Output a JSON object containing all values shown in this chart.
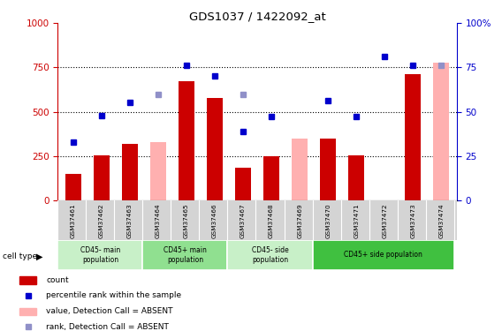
{
  "title": "GDS1037 / 1422092_at",
  "samples": [
    "GSM37461",
    "GSM37462",
    "GSM37463",
    "GSM37464",
    "GSM37465",
    "GSM37466",
    "GSM37467",
    "GSM37468",
    "GSM37469",
    "GSM37470",
    "GSM37471",
    "GSM37472",
    "GSM37473",
    "GSM37474"
  ],
  "count_values": [
    150,
    255,
    320,
    null,
    670,
    580,
    185,
    250,
    null,
    350,
    255,
    null,
    710,
    null
  ],
  "rank_values": [
    330,
    480,
    555,
    null,
    760,
    700,
    390,
    475,
    null,
    565,
    475,
    810,
    760,
    null
  ],
  "value_absent_bar": [
    null,
    null,
    null,
    330,
    null,
    null,
    null,
    null,
    350,
    null,
    null,
    null,
    null,
    775
  ],
  "rank_absent": [
    null,
    null,
    null,
    600,
    null,
    null,
    600,
    null,
    null,
    null,
    null,
    null,
    null,
    760
  ],
  "bar_color_present": "#cc0000",
  "bar_color_absent": "#ffb0b0",
  "dot_color_present": "#0000cc",
  "dot_color_absent": "#9090c8",
  "ylim_left": [
    0,
    1000
  ],
  "ylim_right": [
    0,
    100
  ],
  "yticks_left": [
    0,
    250,
    500,
    750,
    1000
  ],
  "yticks_right": [
    0,
    25,
    50,
    75,
    100
  ],
  "bg_color": "#ffffff",
  "cell_type_groups": [
    {
      "label": "CD45- main\npopulation",
      "start": 0,
      "end": 3,
      "color": "#c8f0c8"
    },
    {
      "label": "CD45+ main\npopulation",
      "start": 3,
      "end": 6,
      "color": "#90e090"
    },
    {
      "label": "CD45- side\npopulation",
      "start": 6,
      "end": 9,
      "color": "#c8f0c8"
    },
    {
      "label": "CD45+ side population",
      "start": 9,
      "end": 14,
      "color": "#40c040"
    }
  ],
  "legend": [
    {
      "label": "count",
      "color": "#cc0000",
      "type": "bar"
    },
    {
      "label": "percentile rank within the sample",
      "color": "#0000cc",
      "type": "dot"
    },
    {
      "label": "value, Detection Call = ABSENT",
      "color": "#ffb0b0",
      "type": "bar"
    },
    {
      "label": "rank, Detection Call = ABSENT",
      "color": "#9090c8",
      "type": "dot"
    }
  ]
}
